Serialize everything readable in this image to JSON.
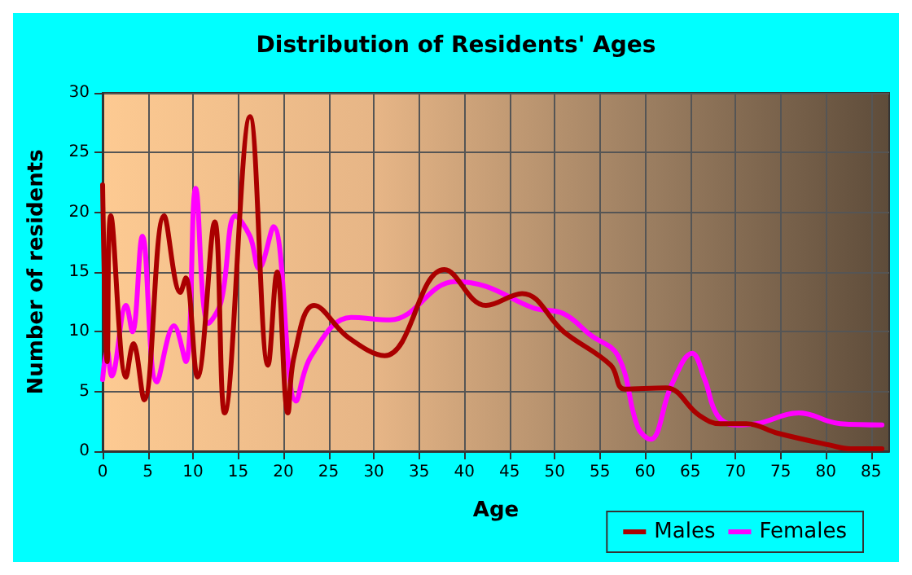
{
  "chart_data": {
    "type": "line",
    "title": "Distribution of Residents' Ages",
    "xlabel": "Age",
    "ylabel": "Number of residents",
    "xlim": [
      0,
      87
    ],
    "xticks": [
      0,
      5,
      10,
      15,
      20,
      25,
      30,
      35,
      40,
      45,
      50,
      55,
      60,
      65,
      70,
      75,
      80,
      85
    ],
    "ylim": [
      0,
      30
    ],
    "yticks": [
      0,
      5,
      10,
      15,
      20,
      25,
      30
    ],
    "grid": true,
    "legend": "bottom right",
    "marker": "none",
    "line_style": "solid",
    "series": [
      {
        "name": "Males",
        "color": "#aa0000",
        "x": [
          0,
          0.5,
          0.9,
          2.6,
          3.4,
          4.6,
          6.8,
          8.6,
          9.2,
          10.5,
          12.4,
          13.5,
          16.3,
          18.3,
          19.3,
          20.5,
          21.2,
          23.4,
          27.2,
          31.2,
          37.8,
          42.4,
          46.4,
          51,
          56.2,
          57.7,
          62.3,
          66,
          68.3,
          71.2,
          74.7,
          80.5,
          82.7,
          86.2
        ],
        "values": [
          22.3,
          7.5,
          19.7,
          6.2,
          9,
          4.3,
          19.7,
          13.3,
          14.5,
          6.2,
          19.2,
          3.2,
          28,
          7.2,
          15,
          3.2,
          8,
          12.2,
          9.5,
          8,
          15.2,
          12.2,
          13.2,
          10,
          7.2,
          5.2,
          5.3,
          3,
          2.3,
          2.3,
          1.5,
          0.5,
          0.2,
          0.2
        ]
      },
      {
        "name": "Females",
        "color": "#ff00ff",
        "x": [
          0,
          0.5,
          1,
          2.6,
          3.3,
          4.4,
          6,
          7.9,
          9.2,
          10.3,
          11.7,
          13.1,
          14.7,
          16.3,
          17.3,
          18.9,
          21.4,
          23.1,
          27.5,
          31.8,
          39,
          42.4,
          47.6,
          51,
          54,
          57,
          59.2,
          60.6,
          62.9,
          65.2,
          66.6,
          68,
          70,
          72.3,
          77,
          81.6,
          86.2
        ],
        "values": [
          6,
          8.5,
          6.3,
          12.2,
          10,
          18,
          5.8,
          10.5,
          7.5,
          22,
          10.7,
          12.5,
          19.7,
          18,
          15.3,
          18.8,
          4.2,
          8,
          11.2,
          11,
          14.2,
          13.8,
          12,
          11.5,
          9.7,
          8,
          2,
          1,
          5.5,
          8.2,
          6,
          3,
          2.2,
          2.3,
          3.2,
          2.3,
          2.2
        ]
      }
    ]
  }
}
